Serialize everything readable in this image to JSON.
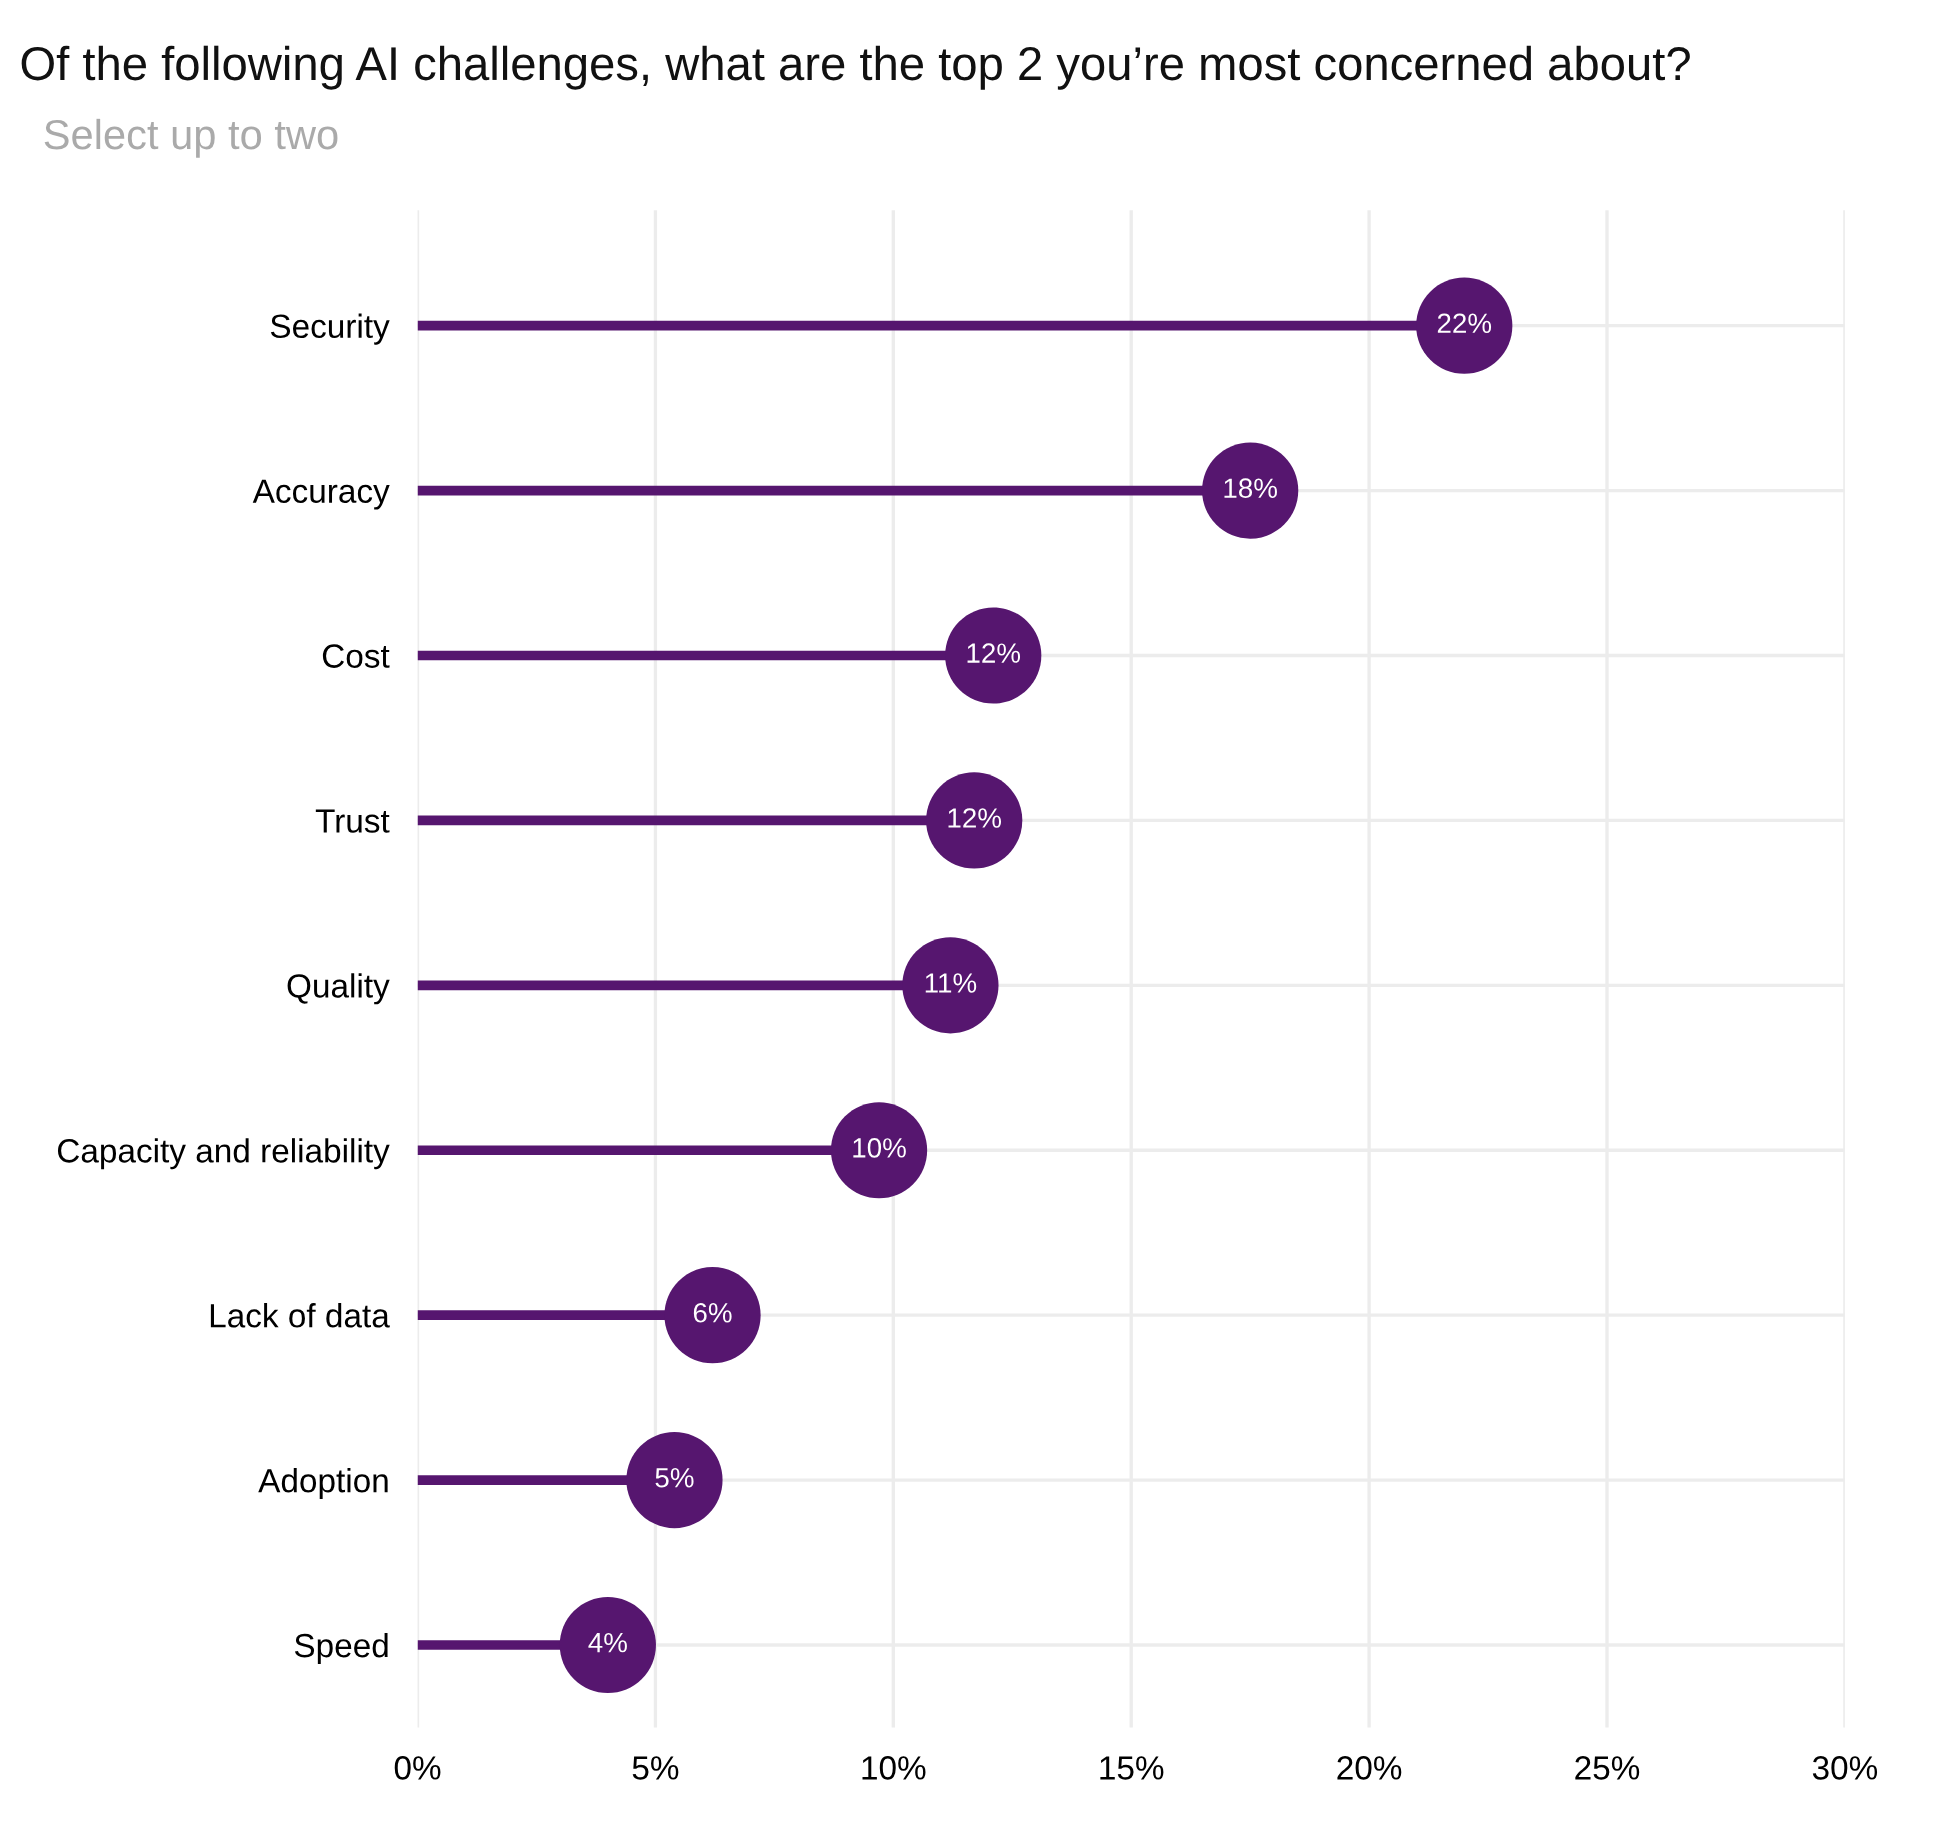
{
  "chart_data": {
    "type": "lollipop",
    "orientation": "horizontal",
    "title": "Of the following AI challenges, what are the top 2 you’re most concerned about?",
    "subtitle": "Select up to two",
    "categories": [
      "Security",
      "Accuracy",
      "Cost",
      "Trust",
      "Quality",
      "Capacity and reliability",
      "Lack of data",
      "Adoption",
      "Speed"
    ],
    "values": [
      22.0,
      17.5,
      12.1,
      11.7,
      11.2,
      9.7,
      6.2,
      5.4,
      4.0
    ],
    "value_labels": [
      "22%",
      "18%",
      "12%",
      "12%",
      "11%",
      "10%",
      "6%",
      "5%",
      "4%"
    ],
    "color": "#56166f",
    "xlim": [
      0,
      30
    ],
    "xticks": [
      {
        "value": 0,
        "label": "0%"
      },
      {
        "value": 5,
        "label": "5%"
      },
      {
        "value": 10,
        "label": "10%"
      },
      {
        "value": 15,
        "label": "15%"
      },
      {
        "value": 20,
        "label": "20%"
      },
      {
        "value": 25,
        "label": "25%"
      },
      {
        "value": 30,
        "label": "30%"
      }
    ],
    "grid": true,
    "marker": "circle",
    "legend": false
  }
}
